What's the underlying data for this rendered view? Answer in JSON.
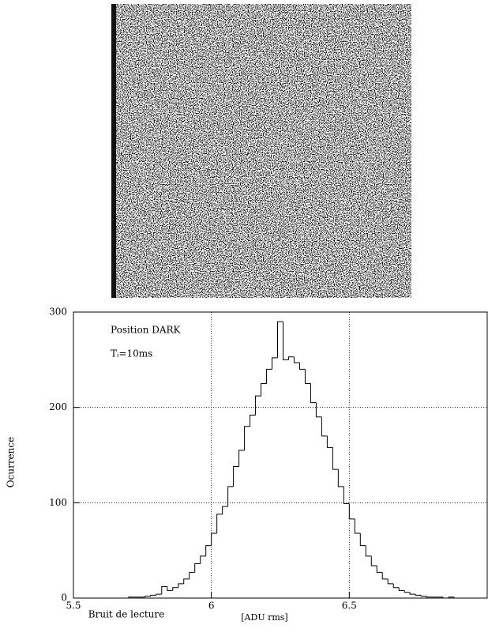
{
  "chart_data": {
    "type": "histogram",
    "xlabel": "Bruit de lecture",
    "xunit": "[ADU rms]",
    "ylabel": "Ocurrence",
    "annotations": [
      "Position DARK",
      "Tᵢ=10ms"
    ],
    "bins": [
      5.7,
      5.72,
      5.74,
      5.76,
      5.78,
      5.8,
      5.82,
      5.84,
      5.86,
      5.88,
      5.9,
      5.92,
      5.94,
      5.96,
      5.98,
      6.0,
      6.02,
      6.04,
      6.06,
      6.08,
      6.1,
      6.12,
      6.14,
      6.16,
      6.18,
      6.2,
      6.22,
      6.24,
      6.26,
      6.28,
      6.3,
      6.32,
      6.34,
      6.36,
      6.38,
      6.4,
      6.42,
      6.44,
      6.46,
      6.48,
      6.5,
      6.52,
      6.54,
      6.56,
      6.58,
      6.6,
      6.62,
      6.64,
      6.66,
      6.68,
      6.7,
      6.72,
      6.74,
      6.76,
      6.78,
      6.8,
      6.82,
      6.84,
      6.86,
      6.88,
      6.9
    ],
    "values": [
      1,
      1,
      1,
      2,
      3,
      4,
      12,
      8,
      11,
      15,
      20,
      27,
      36,
      44,
      55,
      68,
      88,
      96,
      117,
      138,
      155,
      180,
      192,
      212,
      225,
      240,
      252,
      290,
      250,
      253,
      247,
      240,
      225,
      205,
      190,
      170,
      158,
      135,
      117,
      99,
      83,
      68,
      55,
      44,
      34,
      27,
      20,
      15,
      11,
      8,
      6,
      4,
      3,
      2,
      1,
      1,
      1,
      0,
      1,
      0
    ],
    "color": "#000000",
    "xlim": [
      5.5,
      7.0
    ],
    "xticks": [
      5.5,
      6,
      6.5
    ],
    "ylim": [
      0,
      300
    ],
    "yticks": [
      0,
      100,
      200,
      300
    ],
    "grid": true
  }
}
